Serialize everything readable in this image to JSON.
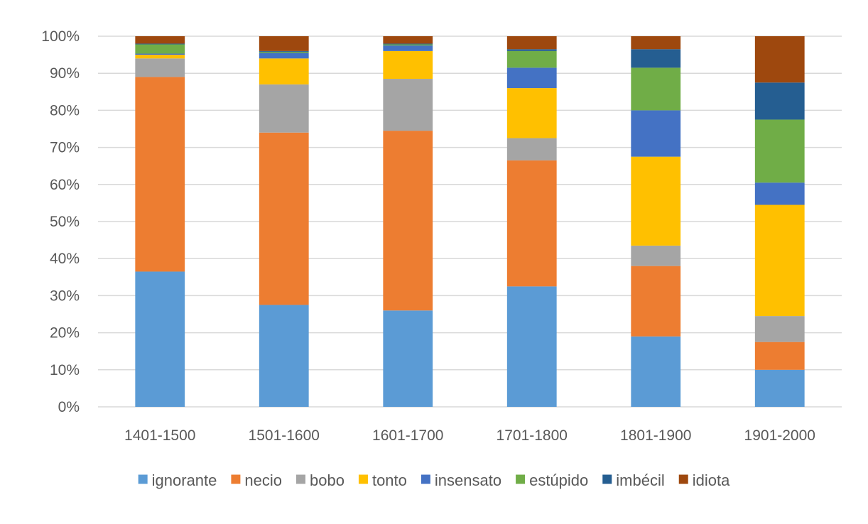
{
  "chart_data": {
    "type": "bar",
    "stacked": true,
    "title": "",
    "xlabel": "",
    "ylabel": "",
    "ylim": [
      0,
      100
    ],
    "y_ticks": [
      "0%",
      "10%",
      "20%",
      "30%",
      "40%",
      "50%",
      "60%",
      "70%",
      "80%",
      "90%",
      "100%"
    ],
    "categories": [
      "1401-1500",
      "1501-1600",
      "1601-1700",
      "1701-1800",
      "1801-1900",
      "1901-2000"
    ],
    "series": [
      {
        "name": "ignorante",
        "color": "#5b9bd5",
        "values": [
          36.5,
          27.5,
          26.0,
          32.5,
          19.0,
          10.0
        ]
      },
      {
        "name": "necio",
        "color": "#ed7d31",
        "values": [
          52.5,
          46.5,
          48.5,
          34.0,
          19.0,
          7.5
        ]
      },
      {
        "name": "bobo",
        "color": "#a5a5a5",
        "values": [
          5.0,
          13.0,
          14.0,
          6.0,
          5.5,
          7.0
        ]
      },
      {
        "name": "tonto",
        "color": "#ffc000",
        "values": [
          1.0,
          7.0,
          7.5,
          13.5,
          24.0,
          30.0
        ]
      },
      {
        "name": "insensato",
        "color": "#4472c4",
        "values": [
          0.3,
          1.5,
          1.5,
          5.5,
          12.5,
          6.0
        ]
      },
      {
        "name": "estúpido",
        "color": "#70ad47",
        "values": [
          2.5,
          0.3,
          0.3,
          4.5,
          11.5,
          17.0
        ]
      },
      {
        "name": "imbécil",
        "color": "#255e91",
        "values": [
          0.2,
          0.2,
          0.2,
          0.5,
          5.0,
          10.0
        ]
      },
      {
        "name": "idiota",
        "color": "#9e480e",
        "values": [
          2.0,
          4.0,
          2.0,
          3.5,
          3.5,
          12.5
        ]
      }
    ],
    "grid": true,
    "legend": "bottom"
  }
}
